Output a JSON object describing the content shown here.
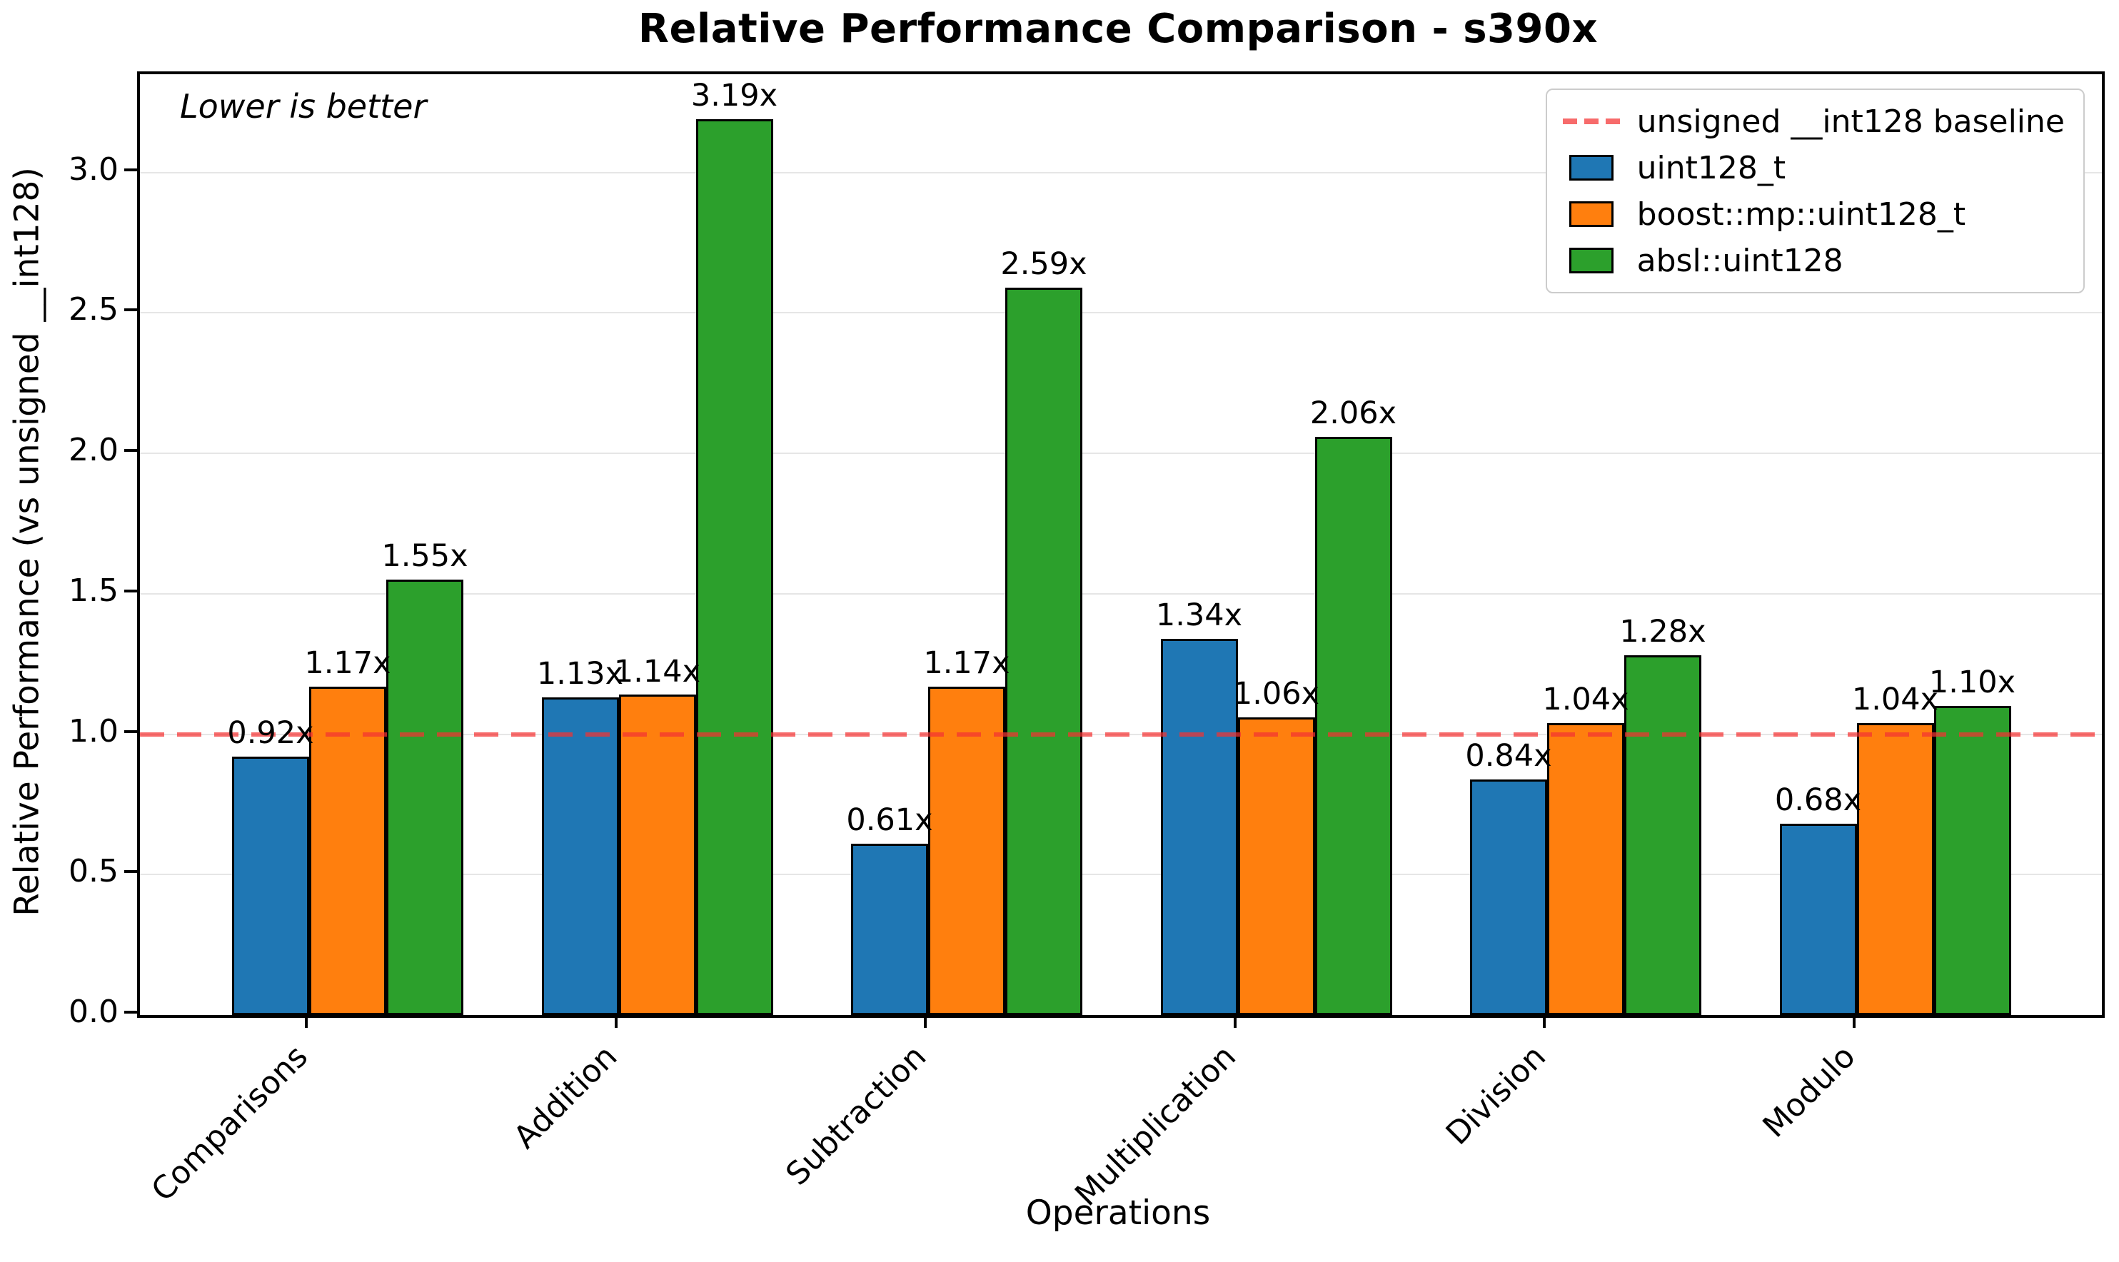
{
  "title": "Relative Performance Comparison - s390x",
  "annotation": "Lower is better",
  "chart_data": {
    "type": "bar",
    "title": "Relative Performance Comparison - s390x",
    "xlabel": "Operations",
    "ylabel": "Relative Performance (vs unsigned __int128)",
    "annotation": "Lower is better",
    "categories": [
      "Comparisons",
      "Addition",
      "Subtraction",
      "Multiplication",
      "Division",
      "Modulo"
    ],
    "series": [
      {
        "name": "uint128_t",
        "color": "#1f77b4",
        "values": [
          0.92,
          1.13,
          0.61,
          1.34,
          0.84,
          0.68
        ],
        "labels": [
          "0.92x",
          "1.13x",
          "0.61x",
          "1.34x",
          "0.84x",
          "0.68x"
        ]
      },
      {
        "name": "boost::mp::uint128_t",
        "color": "#ff7f0e",
        "values": [
          1.17,
          1.14,
          1.17,
          1.06,
          1.04,
          1.04
        ],
        "labels": [
          "1.17x",
          "1.14x",
          "1.17x",
          "1.06x",
          "1.04x",
          "1.04x"
        ]
      },
      {
        "name": "absl::uint128",
        "color": "#2ca02c",
        "values": [
          1.55,
          3.19,
          2.59,
          2.06,
          1.28,
          1.1
        ],
        "labels": [
          "1.55x",
          "3.19x",
          "2.59x",
          "2.06x",
          "1.28x",
          "1.10x"
        ]
      }
    ],
    "baseline": {
      "value": 1.0,
      "label": "unsigned __int128 baseline",
      "color": "#f43232",
      "style": "dashed"
    },
    "ylim": [
      0,
      3.35
    ],
    "yticks": [
      "0.0",
      "0.5",
      "1.0",
      "1.5",
      "2.0",
      "2.5",
      "3.0"
    ],
    "grid": true,
    "legend_position": "upper right",
    "edge_color": "#000000",
    "grid_color": "#e6e6e6"
  }
}
